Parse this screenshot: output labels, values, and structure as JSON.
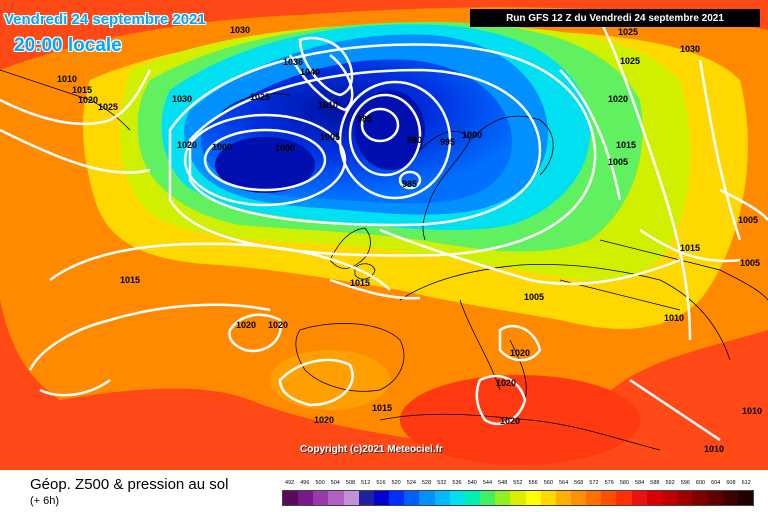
{
  "header": {
    "date_line": "Vendredi 24 septembre 2021",
    "local_time": "20:00 locale",
    "run_info": "Run GFS 12 Z du Vendredi 24 septembre 2021"
  },
  "footer": {
    "title": "Géop. Z500 & pression au sol",
    "subtitle": "(+ 6h)",
    "copyright": "Copyright (c)2021 Meteociel.fr"
  },
  "legend": {
    "labels": [
      "492",
      "496",
      "500",
      "504",
      "508",
      "512",
      "516",
      "520",
      "524",
      "528",
      "532",
      "536",
      "540",
      "544",
      "548",
      "552",
      "556",
      "560",
      "564",
      "568",
      "572",
      "576",
      "580",
      "584",
      "588",
      "592",
      "596",
      "600",
      "604",
      "608",
      "612"
    ],
    "colors": [
      "#5a0a5a",
      "#7a1a8a",
      "#9a3aaa",
      "#b060c0",
      "#c090d8",
      "#2020a0",
      "#0000d0",
      "#0030ff",
      "#0060ff",
      "#0090ff",
      "#00b8ff",
      "#00e0f0",
      "#00f0b0",
      "#40f060",
      "#90f020",
      "#d8f000",
      "#ffff00",
      "#ffd800",
      "#ffb000",
      "#ff9000",
      "#ff7000",
      "#ff5000",
      "#ff3000",
      "#f01010",
      "#d80000",
      "#c00000",
      "#a00000",
      "#800000",
      "#600000",
      "#400000",
      "#200000"
    ]
  },
  "map": {
    "pressure_labels": [
      "1030",
      "1010",
      "1015",
      "1020",
      "1025",
      "1030",
      "1025",
      "1040",
      "1036",
      "1010",
      "1005",
      "985",
      "990",
      "995",
      "1000",
      "985",
      "1000",
      "1020",
      "1000",
      "1030",
      "1025",
      "1025",
      "1020",
      "1015",
      "1005",
      "1015",
      "1015",
      "1005",
      "1020",
      "1020",
      "1015",
      "1005",
      "1010",
      "1020",
      "1020",
      "1020",
      "1015",
      "1020",
      "1010",
      "1005",
      "1010"
    ],
    "colors": {
      "outer_warm": "#ff4a18",
      "orange": "#ff8a00",
      "yellow": "#ffd800",
      "yellow_green": "#d0f000",
      "green": "#60f060",
      "cyan": "#00e0f0",
      "blue": "#0090ff",
      "deep_blue": "#0030e0",
      "core_blue": "#0010b0",
      "land_border": "#000000",
      "isobar": "#ffffff"
    }
  }
}
